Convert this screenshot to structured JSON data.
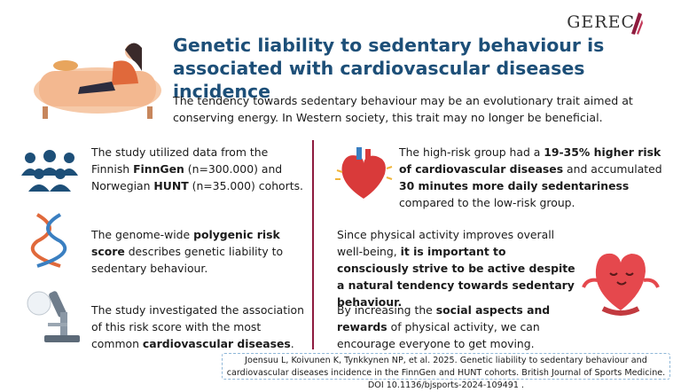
{
  "logo": "GEREC",
  "header": {
    "title": "Genetic liability to sedentary behaviour is associated with cardiovascular diseases incidence",
    "subtitle": "The tendency towards sedentary behaviour may be an evolutionary trait aimed at conserving energy. In Western society, this trait may no longer be beneficial."
  },
  "left": [
    {
      "runs": [
        {
          "text": "The study utilized data from the Finnish ",
          "bold": false
        },
        {
          "text": "FinnGen",
          "bold": true
        },
        {
          "text": " (n=300.000) and Norwegian ",
          "bold": false
        },
        {
          "text": "HUNT",
          "bold": true
        },
        {
          "text": " (n=35.000) cohorts.",
          "bold": false
        }
      ]
    },
    {
      "runs": [
        {
          "text": "The genome-wide ",
          "bold": false
        },
        {
          "text": "polygenic risk score",
          "bold": true
        },
        {
          "text": " describes genetic liability to sedentary behaviour.",
          "bold": false
        }
      ]
    },
    {
      "runs": [
        {
          "text": "The study investigated the association of this risk score with the most common ",
          "bold": false
        },
        {
          "text": "cardiovascular diseases",
          "bold": true
        },
        {
          "text": ".",
          "bold": false
        }
      ]
    }
  ],
  "right": [
    {
      "runs": [
        {
          "text": "The high-risk group had a ",
          "bold": false
        },
        {
          "text": "19-35% higher risk of cardiovascular diseases",
          "bold": true
        },
        {
          "text": " and accumulated ",
          "bold": false
        },
        {
          "text": "30 minutes more daily sedentariness",
          "bold": true
        },
        {
          "text": " compared to the low-risk group.",
          "bold": false
        }
      ]
    },
    {
      "runs": [
        {
          "text": "Since physical activity improves overall well-being, ",
          "bold": false
        },
        {
          "text": "it is important to consciously strive to be active despite a natural tendency towards sedentary behaviour.",
          "bold": true
        }
      ]
    },
    {
      "runs": [
        {
          "text": "By increasing the ",
          "bold": false
        },
        {
          "text": "social aspects and rewards",
          "bold": true
        },
        {
          "text": " of physical activity, we can encourage everyone to get moving.",
          "bold": false
        }
      ]
    }
  ],
  "citation": "Joensuu L, Koivunen K, Tynkkynen NP, et al. 2025. Genetic liability to sedentary behaviour and cardiovascular diseases incidence in the FinnGen and HUNT cohorts. British Journal of Sports Medicine. DOI 10.1136/bjsports-2024-109491 ."
}
